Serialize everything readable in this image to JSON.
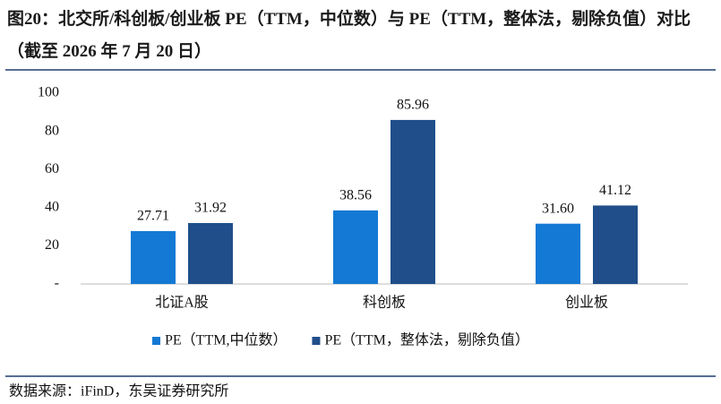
{
  "chart_data": {
    "type": "bar",
    "title": "图20：北交所/科创板/创业板 PE（TTM，中位数）与 PE（TTM，整体法，剔除负值）对比（截至 2026 年 7 月 20 日）",
    "categories": [
      "北证A股",
      "科创板",
      "创业板"
    ],
    "series": [
      {
        "name": "PE（TTM,中位数）",
        "color": "#1479d4",
        "values": [
          27.71,
          38.56,
          31.6
        ],
        "value_labels": [
          "27.71",
          "38.56",
          "31.60"
        ]
      },
      {
        "name": "PE（TTM，整体法，剔除负值）",
        "color": "#1f4e8a",
        "values": [
          31.92,
          85.96,
          41.12
        ],
        "value_labels": [
          "31.92",
          "85.96",
          "41.12"
        ]
      }
    ],
    "ylim": [
      0,
      100
    ],
    "yticks": [
      {
        "value": 0,
        "label": "-"
      },
      20,
      40,
      60,
      80,
      100
    ],
    "grid": false,
    "legend": "bottom",
    "source": "数据来源：iFinD，东吴证券研究所"
  }
}
